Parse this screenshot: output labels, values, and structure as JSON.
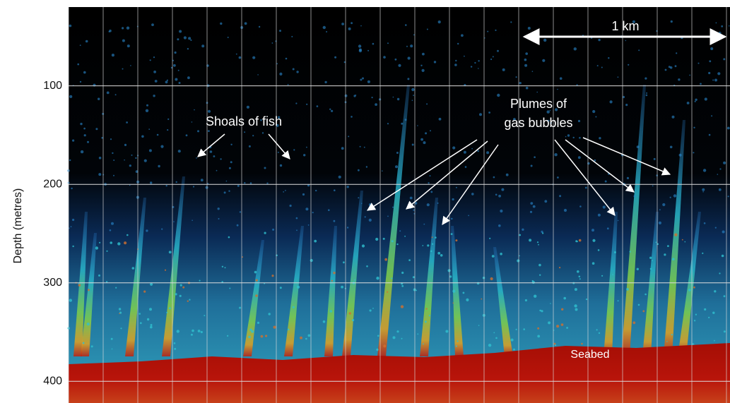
{
  "chart_data": {
    "type": "echogram",
    "ylabel": "Depth (metres)",
    "ylim": [
      20,
      422
    ],
    "inverted": true,
    "yticks": [
      100,
      200,
      300,
      400
    ],
    "grid": true,
    "scale_label": "1 km",
    "annotations": {
      "fish": "Shoals of fish",
      "plumes": [
        "Plumes of",
        "gas bubbles"
      ],
      "seabed": "Seabed"
    }
  }
}
